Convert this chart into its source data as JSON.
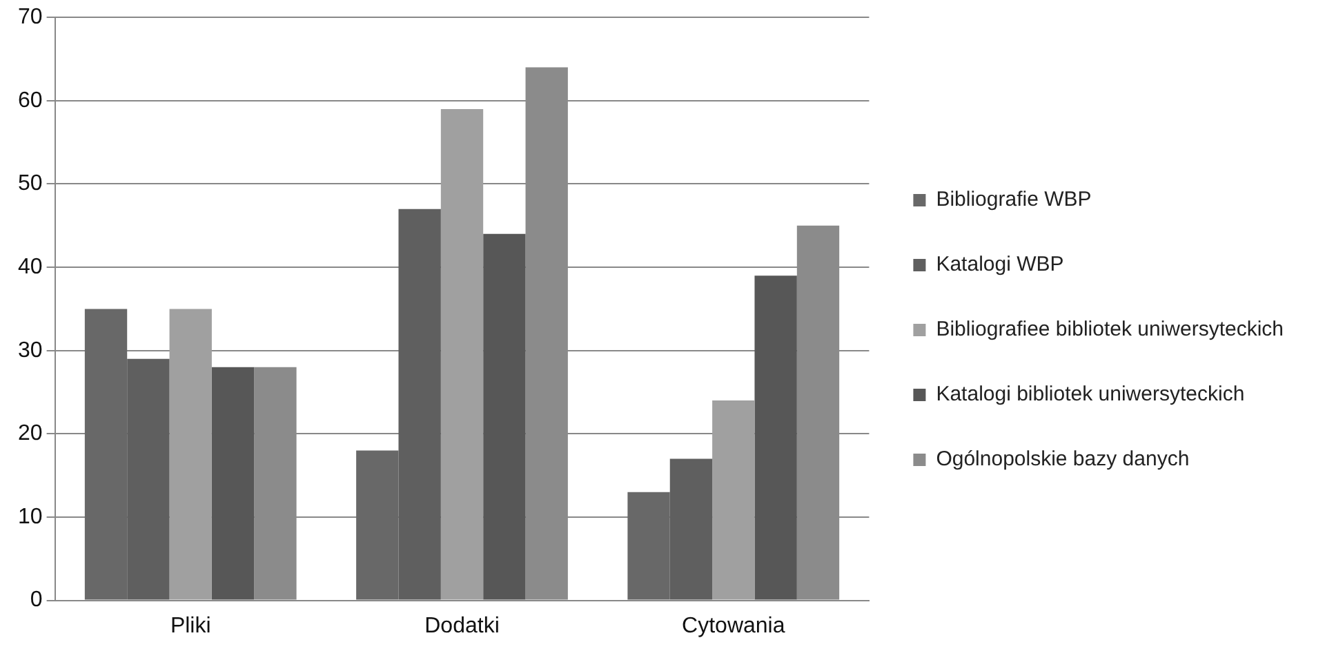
{
  "chart_data": {
    "type": "bar",
    "categories": [
      "Pliki",
      "Dodatki",
      "Cytowania"
    ],
    "series": [
      {
        "name": "Bibliografie WBP",
        "color": "#686868",
        "values": [
          35,
          18,
          13
        ]
      },
      {
        "name": "Katalogi WBP",
        "color": "#5f5f5f",
        "values": [
          29,
          47,
          17
        ]
      },
      {
        "name": "Bibliografiee bibliotek uniwersyteckich",
        "color": "#a0a0a0",
        "values": [
          35,
          59,
          24
        ]
      },
      {
        "name": "Katalogi bibliotek uniwersyteckich",
        "color": "#575757",
        "values": [
          28,
          44,
          39
        ]
      },
      {
        "name": "Ogólnopolskie bazy danych",
        "color": "#8b8b8b",
        "values": [
          28,
          64,
          45
        ]
      }
    ],
    "ylim": [
      0,
      70
    ],
    "yticks": [
      0,
      10,
      20,
      30,
      40,
      50,
      60,
      70
    ],
    "grid": "y",
    "legend": "right"
  }
}
